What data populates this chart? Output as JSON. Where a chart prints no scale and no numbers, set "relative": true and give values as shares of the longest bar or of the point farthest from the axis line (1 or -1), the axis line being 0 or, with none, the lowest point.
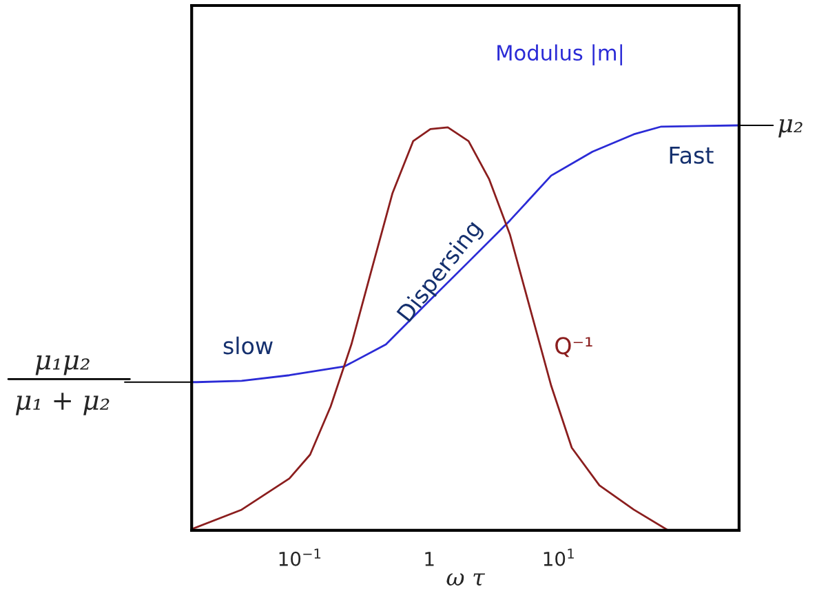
{
  "chart_data": {
    "type": "line",
    "relative": true,
    "xlabel": "ω τ",
    "log": "x",
    "xlim": [
      0.0146,
      247
    ],
    "xticks": [
      {
        "value": 0.1,
        "label": "10$^{−1}$"
      },
      1,
      {
        "value": 10,
        "label": "10$^{1}$"
      }
    ],
    "grid": false,
    "legend": false,
    "marker": "none",
    "line_style": "solid",
    "series": [
      {
        "color": "#2b2bd6",
        "x": [
          0.0146,
          0.0159,
          0.0355,
          0.083,
          0.222,
          0.462,
          0.96,
          2.01,
          4.19,
          8.74,
          18.2,
          38.0,
          61.9,
          247
        ],
        "values": [
          0.366,
          0.366,
          0.369,
          0.383,
          0.405,
          0.459,
          0.561,
          0.663,
          0.765,
          0.876,
          0.935,
          0.978,
          0.997,
          1.0
        ]
      },
      {
        "color": "#8b1e1e",
        "x": [
          0.0146,
          0.0355,
          0.083,
          0.12,
          0.173,
          0.25,
          0.36,
          0.52,
          0.75,
          1.02,
          1.39,
          2.01,
          2.9,
          4.19,
          6.05,
          8.74,
          12.6,
          20.6,
          38.0,
          70
        ],
        "values": [
          0.003,
          0.051,
          0.128,
          0.187,
          0.306,
          0.459,
          0.646,
          0.833,
          0.961,
          0.991,
          0.995,
          0.961,
          0.867,
          0.731,
          0.544,
          0.357,
          0.204,
          0.111,
          0.051,
          0.0
        ]
      }
    ],
    "annotations": [
      "Modulus |m|",
      "slow",
      "Dispersing",
      "Fast",
      "Q⁻¹",
      {
        "text": "μ₂",
        "x": 247,
        "y": 1.0
      },
      {
        "text": "μ₁μ₂\nμ₁ + μ₂",
        "x": 0.0146,
        "y": 0.366
      }
    ]
  }
}
